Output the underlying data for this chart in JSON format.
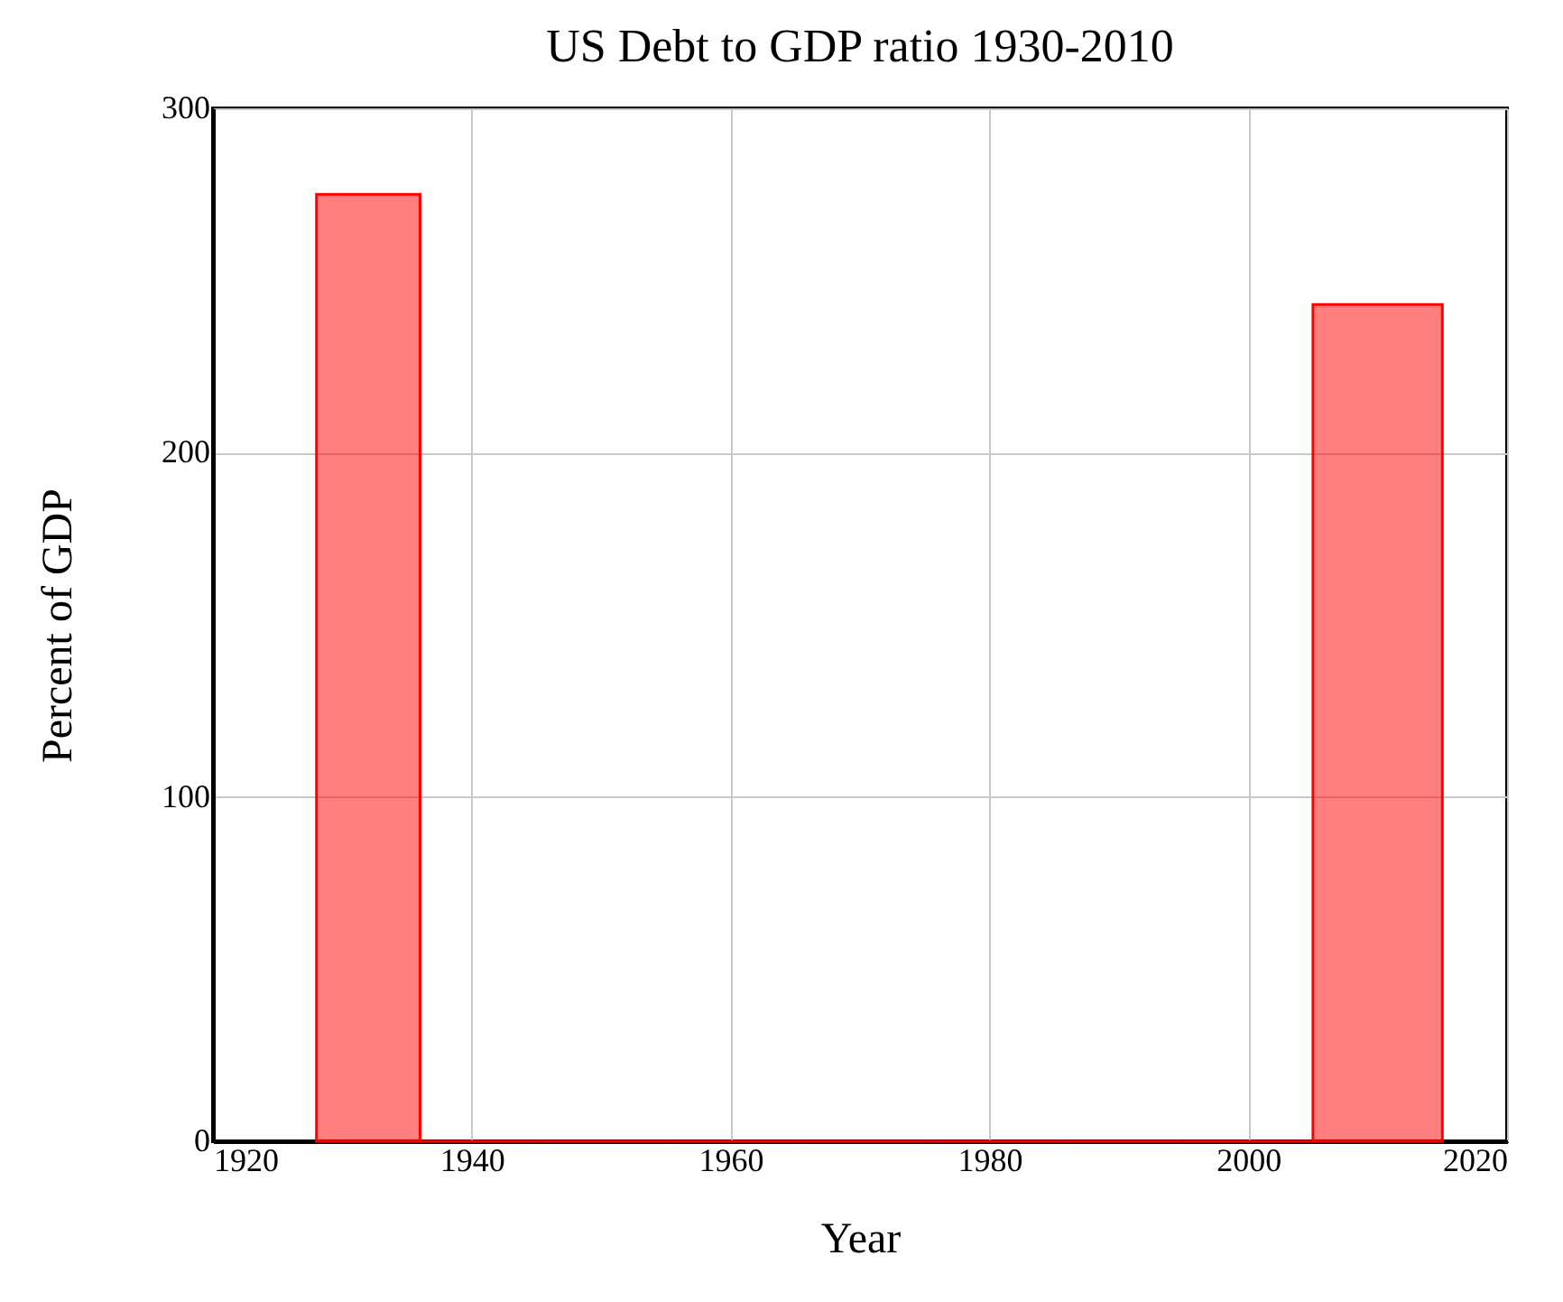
{
  "chart_data": {
    "type": "histogram",
    "title": "US Debt to GDP ratio 1930-2010",
    "xlabel": "Year",
    "ylabel": "Percent of GDP",
    "bins": [
      1928,
      1936,
      1945,
      1955,
      1965,
      1975,
      1985,
      1995,
      2005,
      2015
    ],
    "values": [
      275,
      0,
      0,
      0,
      0,
      0,
      0,
      0,
      243
    ],
    "color": "#ff0000",
    "xlim": [
      1920,
      2020
    ],
    "xticks": [
      1920,
      1940,
      1960,
      1980,
      2000,
      2020
    ],
    "ylim": [
      0,
      300
    ],
    "yticks": [
      0,
      100,
      200,
      300
    ],
    "grid": true
  }
}
